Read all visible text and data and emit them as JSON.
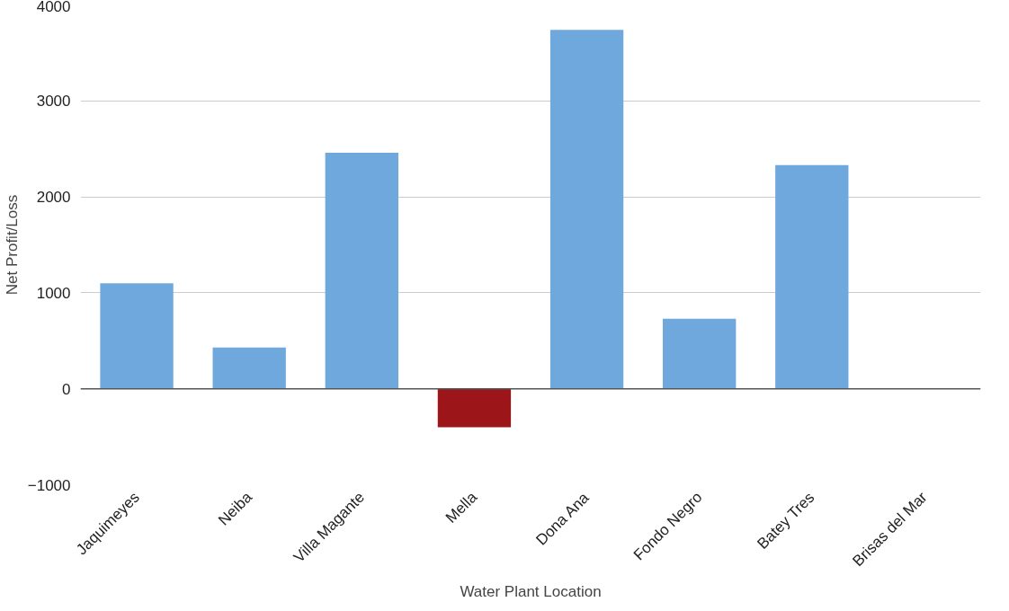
{
  "chart_data": {
    "type": "bar",
    "xlabel": "Water Plant Location",
    "ylabel": "Net Profit/Loss",
    "categories": [
      "Jaquimeyes",
      "Neiba",
      "Villa Magante",
      "Mella",
      "Dona Ana",
      "Fondo Negro",
      "Batey Tres",
      "Brisas del Mar"
    ],
    "values": [
      1100,
      430,
      2460,
      -400,
      3740,
      730,
      2330,
      0
    ],
    "colors": [
      "#6fa8dc",
      "#6fa8dc",
      "#6fa8dc",
      "#9c1519",
      "#6fa8dc",
      "#6fa8dc",
      "#6fa8dc",
      "#6fa8dc"
    ],
    "ylim": [
      -1000,
      4000
    ],
    "yticks": [
      -1000,
      0,
      1000,
      2000,
      3000,
      4000
    ],
    "grid": "y"
  }
}
